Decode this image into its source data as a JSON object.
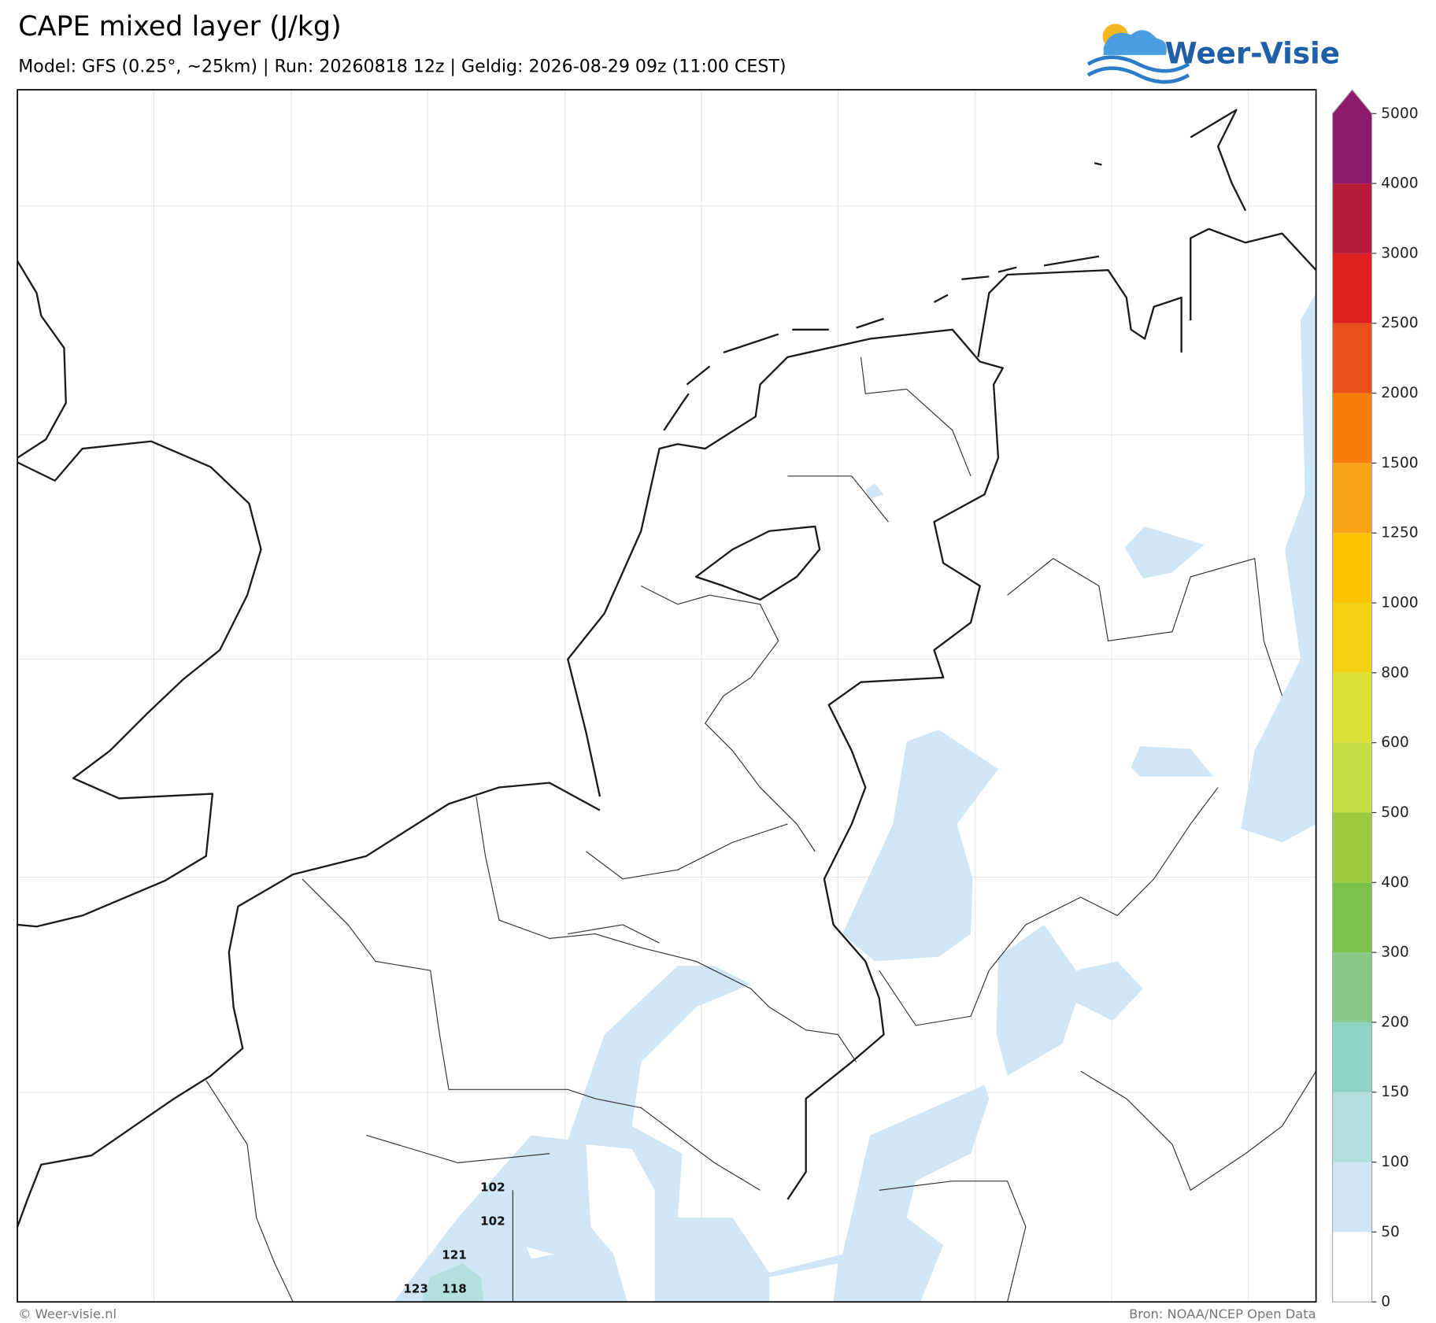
{
  "header": {
    "title": "CAPE mixed layer (J/kg)",
    "subtitle": "Model: GFS (0.25°, ~25km)  |  Run: 20260818 12z  |  Geldig: 2026-08-29 09z (11:00 CEST)",
    "logo": "Weer-Visie"
  },
  "colorbar": {
    "ticks": [
      0,
      50,
      100,
      150,
      200,
      300,
      400,
      500,
      600,
      800,
      1000,
      1250,
      1500,
      2000,
      2500,
      3000,
      4000,
      5000
    ],
    "colors": [
      "#ffffff",
      "#cfe6f6",
      "#b3dfdd",
      "#90d3c4",
      "#86c988",
      "#79c24c",
      "#9acb3e",
      "#c4dc45",
      "#dfdf3a",
      "#f2d013",
      "#fbc200",
      "#f9a21a",
      "#f57f0a",
      "#e7501a",
      "#dd2020",
      "#b51c3a",
      "#8b1a6b"
    ]
  },
  "point_labels": [
    "102",
    "102",
    "121",
    "123",
    "118"
  ],
  "footer": {
    "copyright": "© Weer-visie.nl",
    "source": "Bron: NOAA/NCEP Open Data"
  }
}
